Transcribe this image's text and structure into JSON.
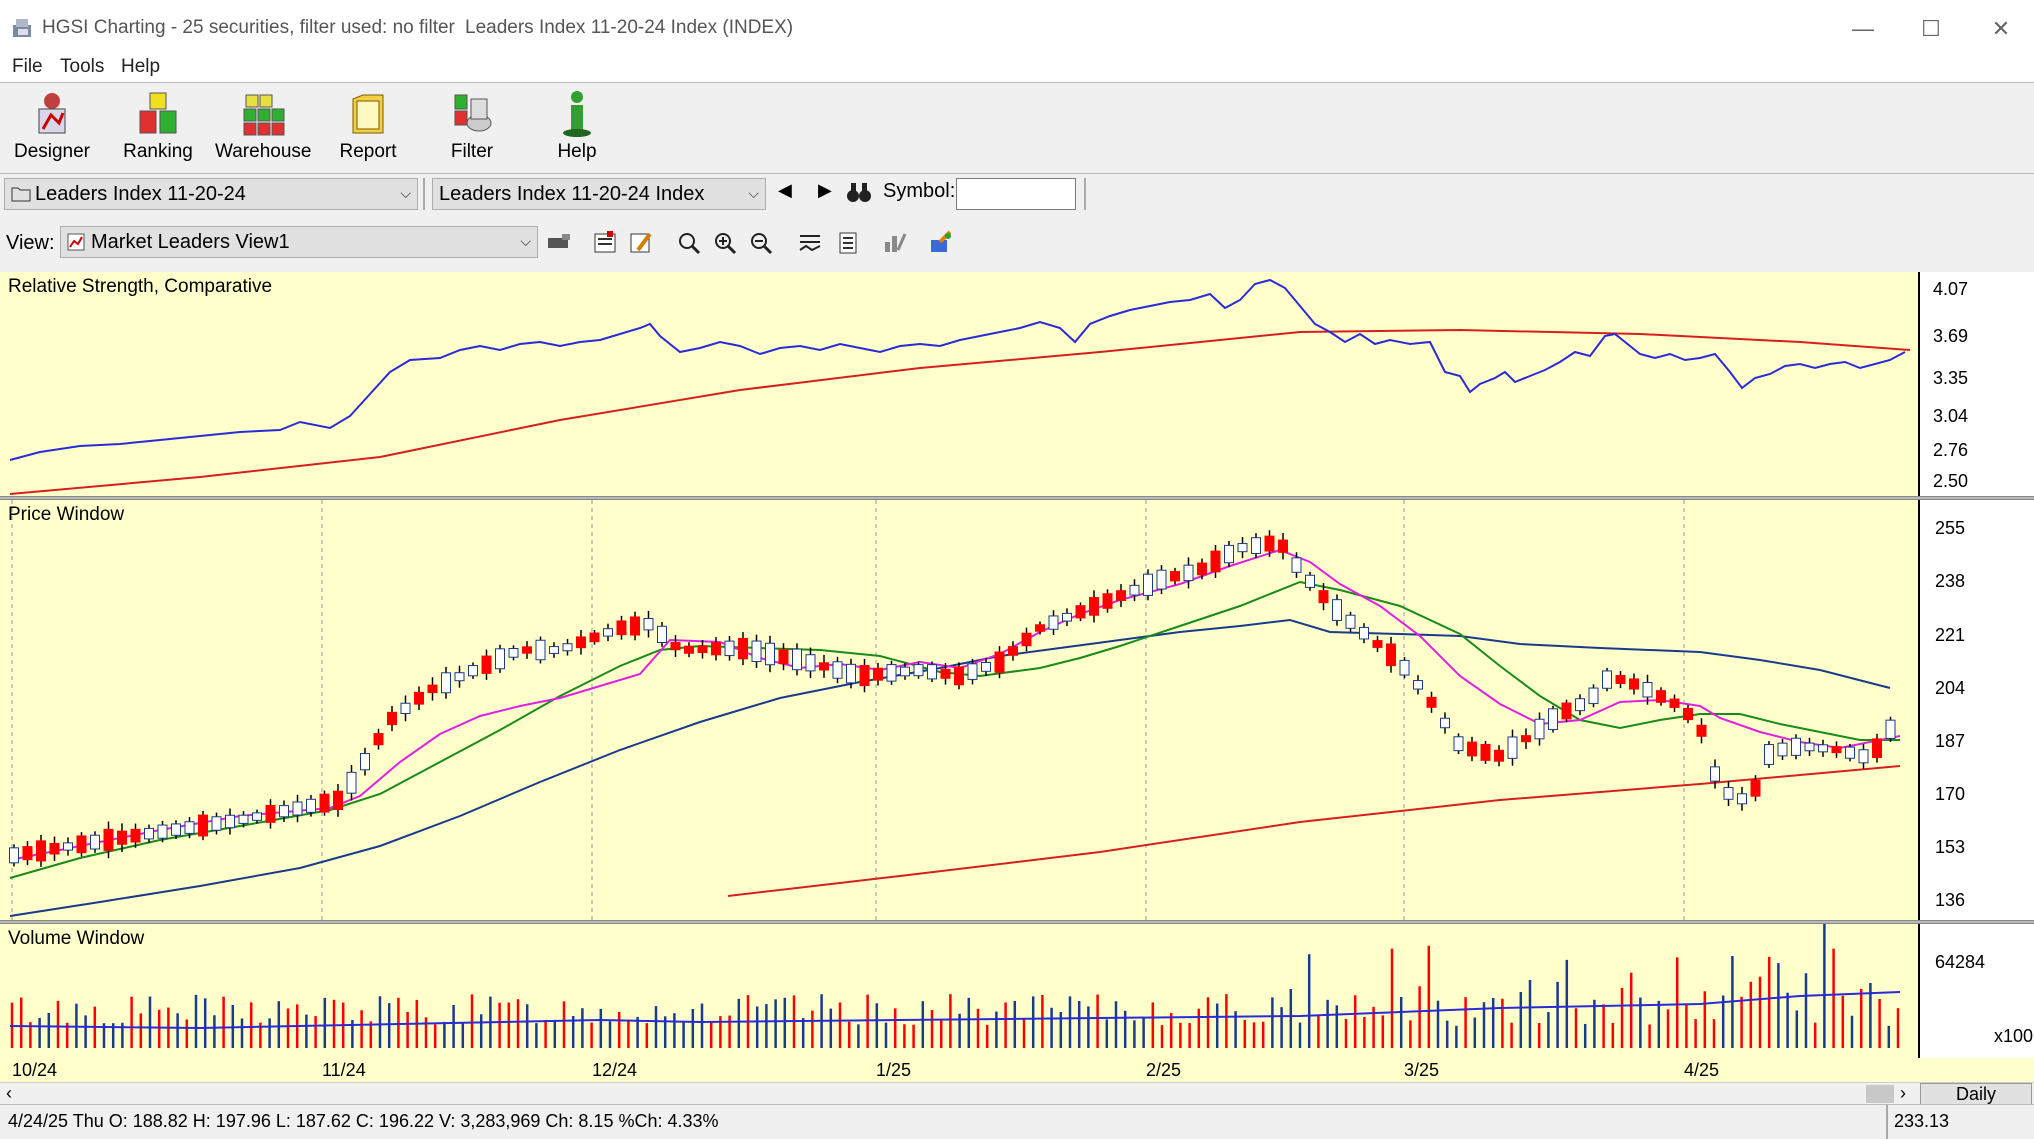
{
  "window": {
    "title": "HGSI Charting - 25 securities, filter used: no filter",
    "subtitle": "Leaders Index 11-20-24 Index (INDEX)",
    "minimize": "—",
    "maximize": "☐",
    "close": "✕"
  },
  "menu": {
    "file": "File",
    "tools": "Tools",
    "help": "Help"
  },
  "toolbar": {
    "designer": "Designer",
    "ranking": "Ranking",
    "warehouse": "Warehouse",
    "report": "Report",
    "filter": "Filter",
    "help": "Help"
  },
  "selectors": {
    "list_value": "Leaders Index 11-20-24",
    "security_value": "Leaders Index 11-20-24 Index",
    "symbol_label": "Symbol:",
    "symbol_value": ""
  },
  "view": {
    "label": "View:",
    "value": "Market Leaders View1"
  },
  "panes": {
    "rs": {
      "label": "Relative Strength, Comparative",
      "ticks": [
        "4.07",
        "3.69",
        "3.35",
        "3.04",
        "2.76",
        "2.50"
      ]
    },
    "price": {
      "label": "Price Window",
      "ticks": [
        "255",
        "238",
        "221",
        "204",
        "187",
        "170",
        "153",
        "136"
      ]
    },
    "volume": {
      "label": "Volume Window",
      "ticks": [
        "64284"
      ],
      "multiplier": "x100"
    }
  },
  "xaxis": {
    "labels": [
      "10/24",
      "11/24",
      "12/24",
      "1/25",
      "2/25",
      "3/25",
      "4/25"
    ]
  },
  "period": "Daily",
  "status": {
    "text": "4/24/25 Thu O: 188.82 H: 197.96 L: 187.62 C: 196.22 V: 3,283,969 Ch: 8.15 %Ch: 4.33%",
    "value": "233.13"
  },
  "colors": {
    "pane_bg": "#ffffcc",
    "up_candle": "#ffffff",
    "down_candle": "#ff0000",
    "rs_line": "#2a2ad6",
    "ma_long": "#d62020",
    "ma_short": "#e020e0",
    "ma_mid": "#1a8a1a",
    "ma_blue": "#1a3a8a"
  }
}
